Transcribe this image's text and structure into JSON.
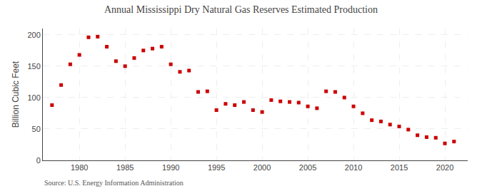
{
  "chart_data": {
    "type": "scatter",
    "title": "Annual Mississippi Dry Natural Gas Reserves Estimated Production",
    "ylabel": "Billion Cubic Feet",
    "annotations": [
      "Source: U.S. Energy Information Administration"
    ],
    "x": [
      1977,
      1978,
      1979,
      1980,
      1981,
      1982,
      1983,
      1984,
      1985,
      1986,
      1987,
      1988,
      1989,
      1990,
      1991,
      1992,
      1993,
      1994,
      1995,
      1996,
      1997,
      1998,
      1999,
      2000,
      2001,
      2002,
      2003,
      2004,
      2005,
      2006,
      2007,
      2008,
      2009,
      2010,
      2011,
      2012,
      2013,
      2014,
      2015,
      2016,
      2017,
      2018,
      2019,
      2020,
      2021
    ],
    "values": [
      88,
      120,
      153,
      168,
      196,
      197,
      181,
      158,
      150,
      163,
      175,
      178,
      181,
      153,
      141,
      143,
      109,
      110,
      80,
      90,
      88,
      93,
      80,
      77,
      96,
      94,
      93,
      92,
      86,
      83,
      110,
      109,
      100,
      86,
      75,
      64,
      62,
      57,
      54,
      49,
      40,
      37,
      36,
      27,
      30
    ],
    "color": "#cc0000",
    "marker": "square",
    "xlim": [
      1976,
      2022.5
    ],
    "ylim": [
      0,
      210
    ],
    "xticks": [
      1980,
      1985,
      1990,
      1995,
      2000,
      2005,
      2010,
      2015,
      2020
    ],
    "yticks": [
      0,
      50,
      100,
      150,
      200
    ],
    "grid": true
  }
}
